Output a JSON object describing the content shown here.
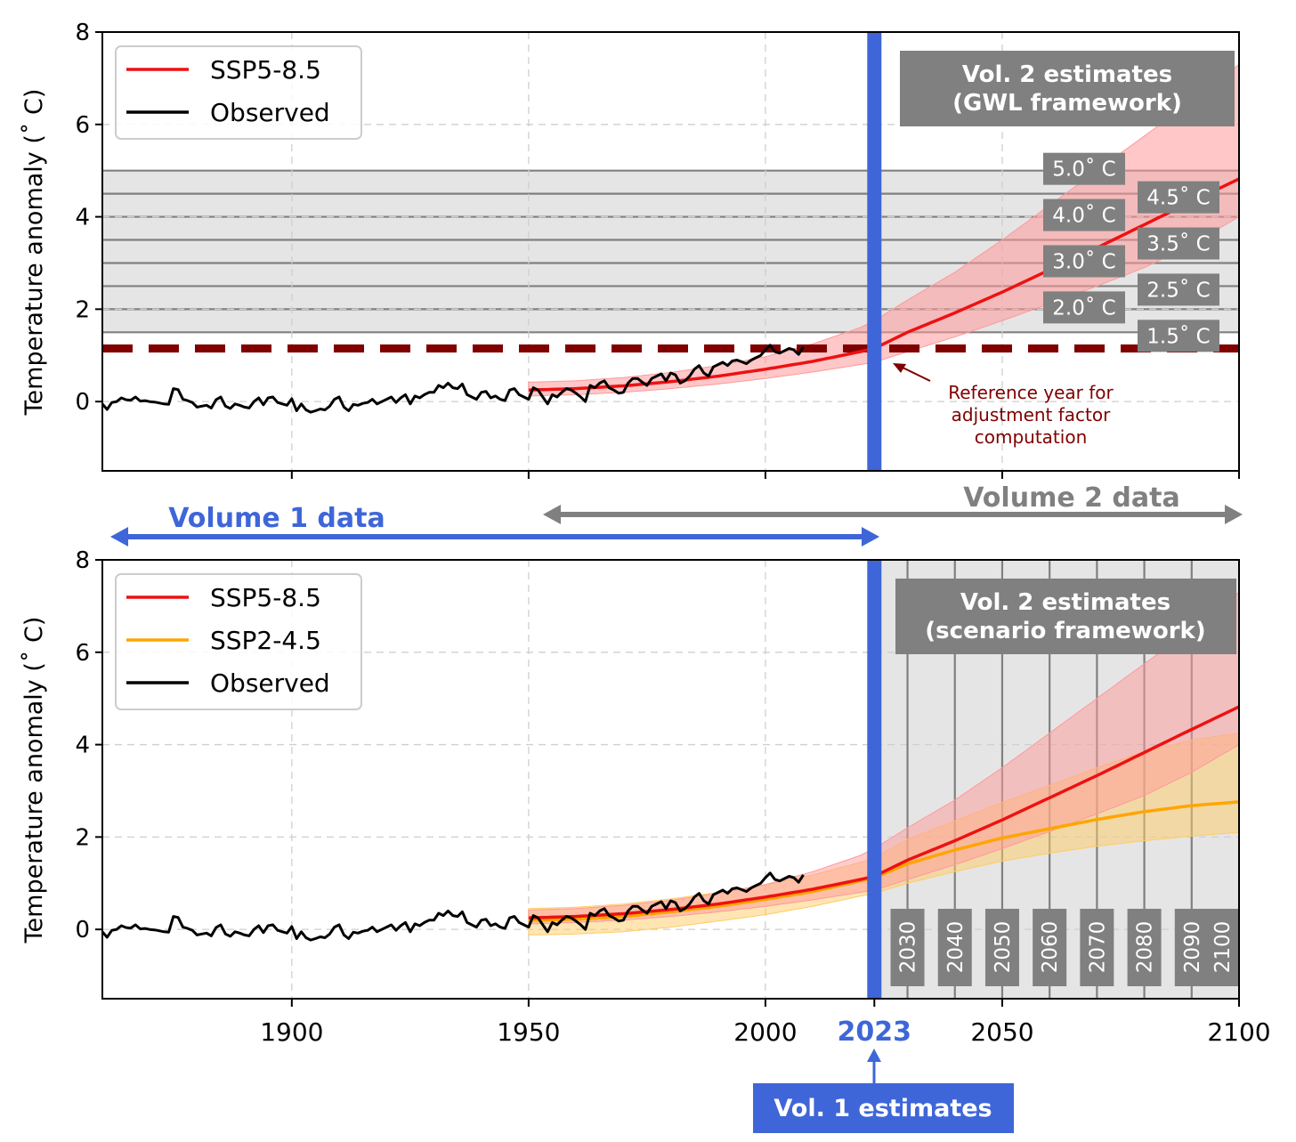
{
  "colors": {
    "ssp585": "#ee1111",
    "ssp585_band": "#ff9999",
    "ssp245": "#ffa500",
    "ssp245_band": "#ffcc66",
    "observed": "#000000",
    "ref_line": "#800000",
    "vol1": "#3f66d8",
    "vol2": "#808080",
    "gwl_region": "#e5e5e5",
    "label_box": "#808080"
  },
  "chart_data": [
    {
      "type": "line",
      "panel": "top",
      "ylabel": "Temperature anomaly (˚ C)",
      "xlim": [
        1860,
        2100
      ],
      "ylim": [
        -1.5,
        8
      ],
      "x_ticks": [
        1900,
        1950,
        2000,
        2050,
        2100
      ],
      "y_ticks": [
        0,
        2,
        4,
        6,
        8
      ],
      "grid": true,
      "legend_position": "top-left",
      "legend": [
        "SSP5-8.5",
        "Observed"
      ],
      "series": [
        {
          "name": "SSP5-8.5",
          "x": [
            1950,
            1960,
            1970,
            1980,
            1990,
            2000,
            2010,
            2020,
            2023,
            2030,
            2040,
            2050,
            2060,
            2070,
            2080,
            2090,
            2100
          ],
          "values": [
            0.25,
            0.28,
            0.34,
            0.43,
            0.55,
            0.7,
            0.87,
            1.08,
            1.15,
            1.5,
            1.92,
            2.37,
            2.85,
            3.33,
            3.83,
            4.33,
            4.82
          ],
          "lower": [
            0.12,
            0.15,
            0.2,
            0.28,
            0.38,
            0.5,
            0.64,
            0.8,
            0.85,
            1.08,
            1.4,
            1.75,
            2.12,
            2.5,
            2.9,
            3.4,
            4.0
          ],
          "upper": [
            0.42,
            0.45,
            0.52,
            0.63,
            0.78,
            0.97,
            1.25,
            1.6,
            1.75,
            2.2,
            2.8,
            3.5,
            4.25,
            5.0,
            5.75,
            6.5,
            7.3
          ]
        },
        {
          "name": "Observed",
          "x_start": 1860,
          "x_step": 1,
          "values": [
            -0.05,
            -0.17,
            -0.02,
            0.0,
            0.08,
            0.04,
            0.03,
            0.1,
            0.01,
            0.02,
            0.0,
            -0.01,
            -0.03,
            -0.05,
            -0.06,
            0.28,
            0.26,
            0.05,
            0.02,
            -0.02,
            -0.12,
            -0.1,
            -0.08,
            -0.14,
            0.04,
            0.1,
            -0.1,
            -0.15,
            -0.05,
            -0.08,
            -0.12,
            -0.14,
            0.0,
            0.08,
            -0.07,
            0.08,
            0.1,
            -0.02,
            -0.05,
            -0.08,
            0.06,
            -0.2,
            -0.05,
            -0.18,
            -0.23,
            -0.2,
            -0.16,
            -0.18,
            -0.1,
            0.05,
            0.1,
            -0.12,
            -0.2,
            -0.06,
            -0.08,
            -0.04,
            -0.02,
            0.05,
            -0.05,
            0.0,
            0.05,
            0.1,
            -0.02,
            0.08,
            0.15,
            -0.05,
            0.12,
            0.08,
            0.15,
            0.2,
            0.2,
            0.35,
            0.3,
            0.4,
            0.3,
            0.28,
            0.38,
            0.15,
            0.1,
            0.05,
            0.2,
            0.22,
            0.08,
            0.12,
            0.05,
            0.02,
            0.25,
            0.28,
            0.15,
            0.1,
            0.05,
            0.3,
            0.25,
            0.1,
            -0.05,
            0.15,
            0.1,
            0.2,
            0.28,
            0.25,
            0.18,
            0.1,
            0.0,
            0.35,
            0.3,
            0.4,
            0.45,
            0.3,
            0.25,
            0.18,
            0.2,
            0.4,
            0.5,
            0.5,
            0.42,
            0.35,
            0.5,
            0.55,
            0.6,
            0.45,
            0.62,
            0.58,
            0.4,
            0.45,
            0.55,
            0.7,
            0.78,
            0.62,
            0.55,
            0.75,
            0.8,
            0.85,
            0.78,
            0.88,
            0.9,
            0.86,
            0.82,
            0.9,
            0.95,
            1.0,
            1.12,
            1.22,
            1.08,
            1.05,
            1.1,
            1.15,
            1.12,
            1.02,
            1.18
          ]
        }
      ],
      "reference_level": 1.15,
      "gwl_levels": [
        1.5,
        2.0,
        2.5,
        3.0,
        3.5,
        4.0,
        4.5,
        5.0
      ],
      "gwl_labels": [
        "1.5˚ C",
        "2.0˚ C",
        "2.5˚ C",
        "3.0˚ C",
        "3.5˚ C",
        "4.0˚ C",
        "4.5˚ C",
        "5.0˚ C"
      ],
      "vertical_marker": 2023,
      "box_title": "Vol. 2 estimates\n(GWL framework)",
      "annotation": "Reference year for\nadjustment factor\ncomputation"
    },
    {
      "type": "line",
      "panel": "bottom",
      "ylabel": "Temperature anomaly (˚ C)",
      "xlim": [
        1860,
        2100
      ],
      "ylim": [
        -1.5,
        8
      ],
      "x_ticks": [
        1900,
        1950,
        2000,
        2023,
        2050,
        2100
      ],
      "x_tick_labels": [
        "1900",
        "1950",
        "2000",
        "2023",
        "2050",
        "2100"
      ],
      "y_ticks": [
        0,
        2,
        4,
        6,
        8
      ],
      "grid": true,
      "legend_position": "top-left",
      "legend": [
        "SSP5-8.5",
        "SSP2-4.5",
        "Observed"
      ],
      "series": [
        {
          "name": "SSP5-8.5",
          "x": [
            1950,
            1960,
            1970,
            1980,
            1990,
            2000,
            2010,
            2020,
            2023,
            2030,
            2040,
            2050,
            2060,
            2070,
            2080,
            2090,
            2100
          ],
          "values": [
            0.25,
            0.28,
            0.34,
            0.43,
            0.55,
            0.7,
            0.87,
            1.08,
            1.15,
            1.5,
            1.92,
            2.37,
            2.85,
            3.33,
            3.83,
            4.33,
            4.82
          ],
          "lower": [
            0.12,
            0.15,
            0.2,
            0.28,
            0.38,
            0.5,
            0.64,
            0.8,
            0.85,
            1.08,
            1.4,
            1.75,
            2.12,
            2.5,
            2.9,
            3.4,
            4.0
          ],
          "upper": [
            0.42,
            0.45,
            0.52,
            0.63,
            0.78,
            0.97,
            1.25,
            1.6,
            1.75,
            2.2,
            2.8,
            3.5,
            4.25,
            5.0,
            5.75,
            6.5,
            7.3
          ]
        },
        {
          "name": "SSP2-4.5",
          "x": [
            1950,
            1960,
            1970,
            1980,
            1990,
            2000,
            2010,
            2020,
            2023,
            2030,
            2040,
            2050,
            2060,
            2070,
            2080,
            2090,
            2100
          ],
          "values": [
            0.2,
            0.22,
            0.28,
            0.38,
            0.5,
            0.65,
            0.82,
            1.05,
            1.12,
            1.42,
            1.72,
            1.98,
            2.18,
            2.38,
            2.55,
            2.68,
            2.76
          ],
          "lower": [
            -0.12,
            -0.1,
            -0.05,
            0.05,
            0.18,
            0.32,
            0.5,
            0.72,
            0.78,
            1.0,
            1.25,
            1.48,
            1.65,
            1.8,
            1.92,
            2.02,
            2.1
          ],
          "upper": [
            0.45,
            0.48,
            0.55,
            0.66,
            0.8,
            0.96,
            1.18,
            1.45,
            1.55,
            1.95,
            2.35,
            2.75,
            3.12,
            3.5,
            3.85,
            4.1,
            4.25
          ]
        },
        {
          "name": "Observed",
          "same_as": "top"
        }
      ],
      "decade_markers": [
        2030,
        2040,
        2050,
        2060,
        2070,
        2080,
        2090,
        2100
      ],
      "decade_labels": [
        "2030",
        "2040",
        "2050",
        "2060",
        "2070",
        "2080",
        "2090",
        "2100"
      ],
      "vertical_marker": 2023,
      "box_title": "Vol. 2 estimates\n(scenario framework)"
    }
  ],
  "texts": {
    "volume1_label": "Volume 1 data",
    "volume2_label": "Volume 2 data",
    "vol1_estimates": "Vol. 1 estimates",
    "marker_year": "2023"
  }
}
